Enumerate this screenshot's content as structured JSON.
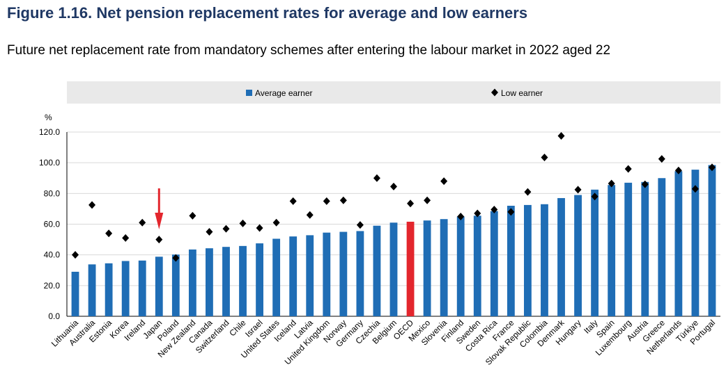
{
  "figure": {
    "title": "Figure 1.16. Net pension replacement rates for average and low earners",
    "subtitle": "Future net replacement rate from mandatory schemes after entering the labour market in 2022 aged 22"
  },
  "colors": {
    "average_bar": "#1f6db5",
    "highlight_bar": "#e3262d",
    "low_marker": "#000000",
    "arrow": "#e3262d",
    "legend_bg": "#e9e9e9",
    "title": "#1f3864"
  },
  "chart_data": {
    "type": "bar",
    "title": "",
    "ylabel": "%",
    "ylim": [
      0,
      120
    ],
    "yticks": [
      "0.0",
      "20.0",
      "40.0",
      "60.0",
      "80.0",
      "100.0",
      "120.0"
    ],
    "grid": true,
    "legend_position": "top",
    "highlight_category": "OECD",
    "annotation": "arrow pointing to Japan",
    "categories": [
      "Lithuania",
      "Australia",
      "Estonia",
      "Korea",
      "Ireland",
      "Japan",
      "Poland",
      "New Zealand",
      "Canada",
      "Switzerland",
      "Chile",
      "Israel",
      "United States",
      "Iceland",
      "Latvia",
      "United Kingdom",
      "Norway",
      "Germany",
      "Czechia",
      "Belgium",
      "OECD",
      "Mexico",
      "Slovenia",
      "Finland",
      "Sweden",
      "Costa Rica",
      "France",
      "Slovak Republic",
      "Colombia",
      "Denmark",
      "Hungary",
      "Italy",
      "Spain",
      "Luxembourg",
      "Austria",
      "Greece",
      "Netherlands",
      "Türkiye",
      "Portugal"
    ],
    "series": [
      {
        "name": "Average earner",
        "style": "bar",
        "values": [
          29.0,
          33.8,
          34.5,
          36.0,
          36.3,
          38.8,
          40.2,
          43.5,
          44.3,
          45.2,
          45.8,
          47.5,
          50.5,
          52.0,
          52.8,
          54.5,
          55.0,
          55.5,
          59.0,
          61.0,
          61.6,
          62.4,
          63.3,
          65.0,
          65.5,
          68.5,
          72.0,
          72.5,
          73.0,
          77.0,
          79.0,
          82.5,
          85.5,
          87.0,
          87.5,
          90.0,
          94.5,
          95.5,
          98.5
        ]
      },
      {
        "name": "Low earner",
        "style": "diamond",
        "values": [
          40.0,
          72.5,
          54.0,
          51.0,
          61.0,
          50.0,
          38.0,
          65.5,
          55.0,
          57.0,
          60.5,
          57.5,
          61.0,
          75.0,
          66.0,
          75.0,
          75.5,
          59.5,
          90.0,
          84.5,
          73.5,
          75.5,
          88.0,
          65.0,
          67.0,
          69.5,
          68.0,
          81.0,
          103.5,
          117.5,
          82.5,
          78.0,
          86.5,
          96.0,
          86.0,
          102.5,
          95.0,
          83.0,
          97.0
        ]
      }
    ]
  }
}
